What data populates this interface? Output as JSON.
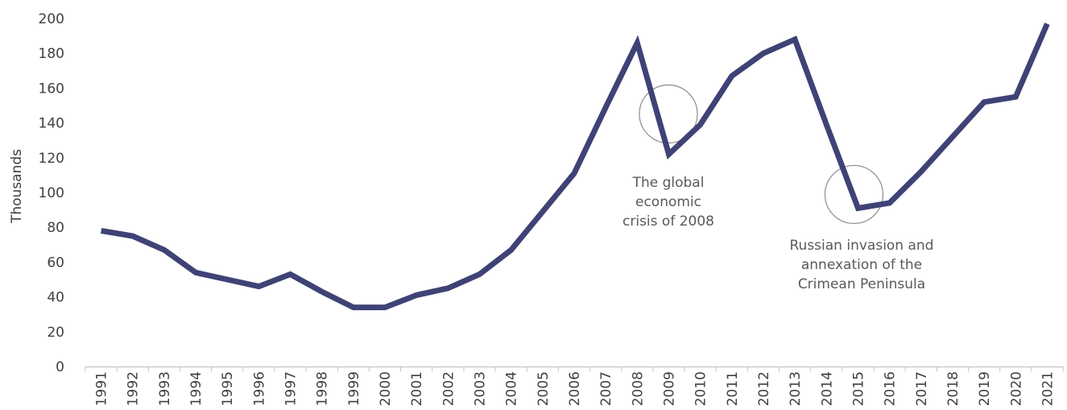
{
  "chart_data": {
    "type": "line",
    "title": "",
    "xlabel": "",
    "ylabel": "Thousands",
    "ylim": [
      0,
      200
    ],
    "yticks": [
      0,
      20,
      40,
      60,
      80,
      100,
      120,
      140,
      160,
      180,
      200
    ],
    "grid": false,
    "legend": "none",
    "categories": [
      "1991",
      "1992",
      "1993",
      "1994",
      "1995",
      "1996",
      "1997",
      "1998",
      "1999",
      "2000",
      "2001",
      "2002",
      "2003",
      "2004",
      "2005",
      "2006",
      "2007",
      "2008",
      "2009",
      "2010",
      "2011",
      "2012",
      "2013",
      "2014",
      "2015",
      "2016",
      "2017",
      "2018",
      "2019",
      "2020",
      "2021"
    ],
    "series": [
      {
        "color": "#3f4275",
        "values": [
          78,
          75,
          67,
          54,
          50,
          46,
          53,
          43,
          34,
          34,
          41,
          45,
          53,
          67,
          89,
          111,
          149,
          186,
          122,
          139,
          167,
          180,
          188,
          139,
          91,
          94,
          112,
          132,
          152,
          155,
          197
        ]
      }
    ],
    "annotations": [
      {
        "target": "2009",
        "lines": [
          "The global",
          "economic",
          "crisis of 2008"
        ]
      },
      {
        "target": "2015",
        "lines": [
          "Russian invasion and",
          "annexation of the",
          "Crimean Peninsula"
        ]
      }
    ]
  }
}
